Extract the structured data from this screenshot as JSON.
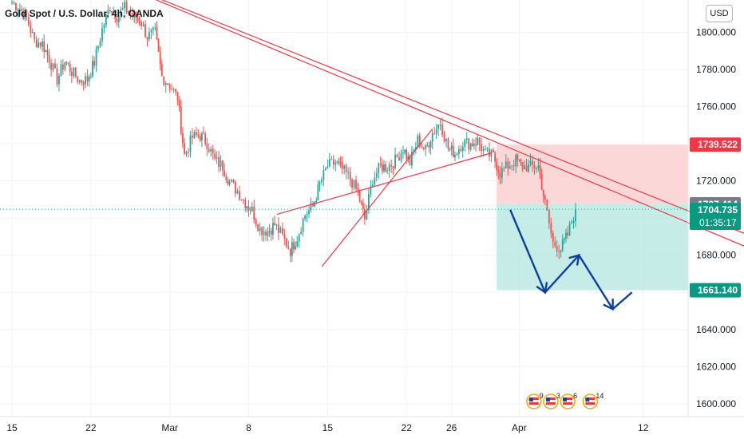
{
  "header": {
    "title": "Gold Spot / U.S. Dollar, 4h, OANDA"
  },
  "currency_button": "USD",
  "colors": {
    "up": "#26a69a",
    "down": "#ef5350",
    "line": "#f23645",
    "arrow": "#0d3fa3",
    "target_zone": "#b2e5df",
    "stop_zone": "#fbd0d0",
    "gray_tag": "#787b86"
  },
  "chart_data": {
    "type": "candlestick",
    "title": "Gold Spot / U.S. Dollar, 4h, OANDA",
    "currency": "USD",
    "ylim": [
      1590,
      1820
    ],
    "y_ticks": [
      {
        "label": "1800.000",
        "value": 1800
      },
      {
        "label": "1780.000",
        "value": 1780
      },
      {
        "label": "1760.000",
        "value": 1760
      },
      {
        "label": "1740.000",
        "value": 1740
      },
      {
        "label": "1720.000",
        "value": 1720
      },
      {
        "label": "1700.000",
        "value": 1700
      },
      {
        "label": "1680.000",
        "value": 1680
      },
      {
        "label": "1660.000",
        "value": 1660
      },
      {
        "label": "1640.000",
        "value": 1640
      },
      {
        "label": "1620.000",
        "value": 1620
      },
      {
        "label": "1600.000",
        "value": 1600
      }
    ],
    "x_ticks": [
      {
        "label": "15",
        "day": 0
      },
      {
        "label": "22",
        "day": 7
      },
      {
        "label": "Mar",
        "day": 14
      },
      {
        "label": "8",
        "day": 21
      },
      {
        "label": "15",
        "day": 28
      },
      {
        "label": "22",
        "day": 35
      },
      {
        "label": "26",
        "day": 39
      },
      {
        "label": "Apr",
        "day": 45
      },
      {
        "label": "12",
        "day": 56
      }
    ],
    "price_tags": [
      {
        "label": "1739.522",
        "value": 1739.522,
        "kind": "stop"
      },
      {
        "label": "1707.414",
        "value": 1707.414,
        "kind": "gray"
      },
      {
        "label": "1704.735",
        "value": 1704.735,
        "kind": "last",
        "countdown": "01:35:17"
      },
      {
        "label": "1661.140",
        "value": 1661.14,
        "kind": "target"
      }
    ],
    "position": {
      "type": "short",
      "entry": 1707.414,
      "stop": 1739.522,
      "target": 1661.14,
      "from_day": 43,
      "to_day": 64
    },
    "trendlines": [
      {
        "from": [
          9,
          1828
        ],
        "to": [
          66.5,
          1688
        ]
      },
      {
        "from": [
          11,
          1822
        ],
        "to": [
          66.5,
          1681
        ]
      },
      {
        "from": [
          23.5,
          1702
        ],
        "to": [
          42.5,
          1735
        ]
      },
      {
        "from": [
          27.5,
          1674
        ],
        "to": [
          37.3,
          1748
        ]
      }
    ],
    "forecast_path": [
      [
        44.2,
        1704.5
      ],
      [
        47.3,
        1660
      ],
      [
        50.3,
        1680
      ],
      [
        53.3,
        1651
      ],
      [
        55,
        1660
      ]
    ],
    "close_series": [
      [
        0.0,
        1816.2
      ],
      [
        0.7,
        1812.7
      ],
      [
        1.3,
        1807.6
      ],
      [
        2.0,
        1795.1
      ],
      [
        2.7,
        1793.9
      ],
      [
        3.3,
        1785.8
      ],
      [
        4.0,
        1774.6
      ],
      [
        4.7,
        1784.6
      ],
      [
        5.3,
        1778.8
      ],
      [
        6.0,
        1773.9
      ],
      [
        6.7,
        1774.7
      ],
      [
        7.3,
        1783.9
      ],
      [
        8.0,
        1801.6
      ],
      [
        8.7,
        1814.0
      ],
      [
        9.3,
        1808.6
      ],
      [
        10.0,
        1813.2
      ],
      [
        10.7,
        1808.6
      ],
      [
        11.3,
        1807.6
      ],
      [
        12.0,
        1797.8
      ],
      [
        12.7,
        1799.6
      ],
      [
        13.3,
        1776.0
      ],
      [
        14.0,
        1771.7
      ],
      [
        14.7,
        1764.5
      ],
      [
        15.3,
        1733.7
      ],
      [
        16.0,
        1743.5
      ],
      [
        16.7,
        1744.5
      ],
      [
        17.3,
        1740.6
      ],
      [
        18.0,
        1731.0
      ],
      [
        18.7,
        1727.9
      ],
      [
        19.3,
        1719.3
      ],
      [
        20.0,
        1714.6
      ],
      [
        20.7,
        1708.4
      ],
      [
        21.3,
        1704.2
      ],
      [
        22.0,
        1694.0
      ],
      [
        22.7,
        1692.9
      ],
      [
        23.3,
        1696.4
      ],
      [
        24.0,
        1690.0
      ],
      [
        24.7,
        1682.6
      ],
      [
        25.3,
        1689.6
      ],
      [
        26.0,
        1701.9
      ],
      [
        26.7,
        1706.2
      ],
      [
        27.3,
        1718.2
      ],
      [
        28.0,
        1728.0
      ],
      [
        28.7,
        1729.9
      ],
      [
        29.3,
        1726.2
      ],
      [
        30.0,
        1721.3
      ],
      [
        30.7,
        1713.2
      ],
      [
        31.3,
        1699.3
      ],
      [
        32.0,
        1721.1
      ],
      [
        32.7,
        1727.7
      ],
      [
        33.3,
        1727.5
      ],
      [
        34.0,
        1730.9
      ],
      [
        34.7,
        1737.5
      ],
      [
        35.3,
        1729.8
      ],
      [
        36.0,
        1742.2
      ],
      [
        36.7,
        1736.3
      ],
      [
        37.3,
        1745.6
      ],
      [
        38.0,
        1751.6
      ],
      [
        38.7,
        1737.5
      ],
      [
        39.3,
        1734.8
      ],
      [
        40.0,
        1741.0
      ],
      [
        40.7,
        1739.9
      ],
      [
        41.3,
        1741.6
      ],
      [
        42.0,
        1734.6
      ],
      [
        42.7,
        1733.2
      ],
      [
        43.3,
        1724.3
      ],
      [
        44.0,
        1728.2
      ],
      [
        44.7,
        1731.1
      ],
      [
        45.3,
        1727.8
      ],
      [
        46.0,
        1727.6
      ],
      [
        46.7,
        1728.0
      ],
      [
        47.3,
        1707.6
      ],
      [
        48.0,
        1686.4
      ],
      [
        48.7,
        1683.5
      ],
      [
        49.3,
        1691.0
      ],
      [
        50.0,
        1704.7
      ]
    ],
    "calendar_events": [
      {
        "count": "9"
      },
      {
        "count": "3"
      },
      {
        "count": "6"
      },
      {
        "count": "14"
      }
    ]
  }
}
